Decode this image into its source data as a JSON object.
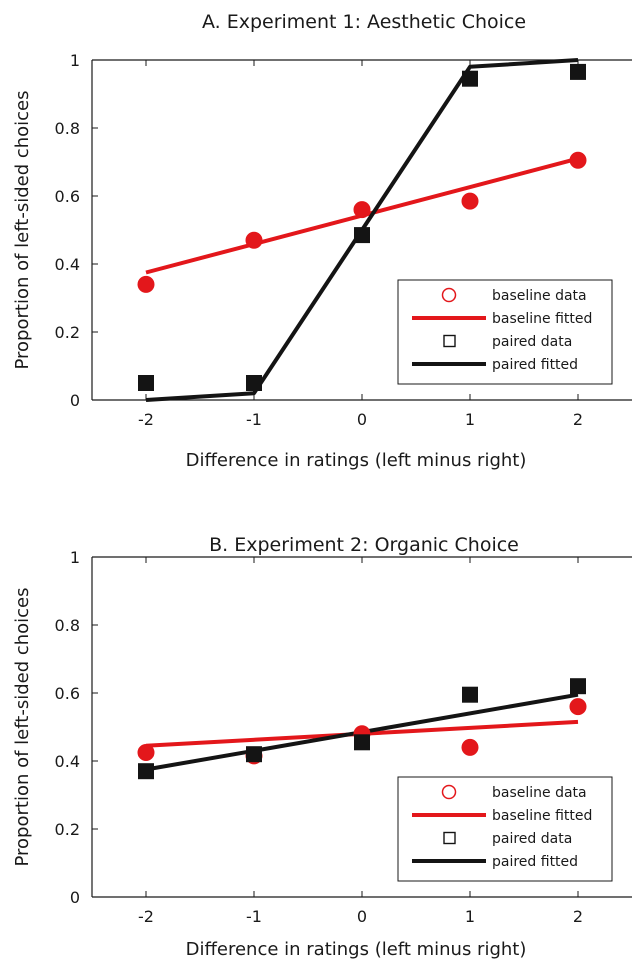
{
  "colors": {
    "baseline": "#e3171b",
    "paired": "#141414",
    "axis": "#1a1a1a"
  },
  "chart_data": [
    {
      "type": "scatter",
      "title": "A. Experiment 1: Aesthetic Choice",
      "xlabel": "Difference in ratings (left minus right)",
      "ylabel": "Proportion of left-sided choices",
      "xlim": [
        -2.5,
        2.5
      ],
      "ylim": [
        0,
        1
      ],
      "xticks": [
        -2,
        -1,
        0,
        1,
        2
      ],
      "xtick_labels": [
        "-2",
        "-1",
        "0",
        "1",
        "2"
      ],
      "yticks": [
        0,
        0.2,
        0.4,
        0.6,
        0.8,
        1
      ],
      "ytick_labels": [
        "0",
        "0.2",
        "0.4",
        "0.6",
        "0.8",
        "1"
      ],
      "legend_position": "bottom-right",
      "series": [
        {
          "name": "baseline data",
          "kind": "markers",
          "marker": "circle",
          "color_key": "baseline",
          "x": [
            -2,
            -1,
            0,
            1,
            2
          ],
          "y": [
            0.34,
            0.47,
            0.56,
            0.585,
            0.705
          ]
        },
        {
          "name": "baseline fitted",
          "kind": "line",
          "color_key": "baseline",
          "x": [
            -2,
            2
          ],
          "y": [
            0.375,
            0.71
          ]
        },
        {
          "name": "paired data",
          "kind": "markers",
          "marker": "square",
          "color_key": "paired",
          "x": [
            -2,
            -1,
            0,
            1,
            2
          ],
          "y": [
            0.05,
            0.05,
            0.485,
            0.945,
            0.965
          ]
        },
        {
          "name": "paired fitted",
          "kind": "line",
          "color_key": "paired",
          "x": [
            -2,
            -1,
            0,
            1,
            2
          ],
          "y": [
            0.0,
            0.02,
            0.5,
            0.98,
            1.0
          ]
        }
      ]
    },
    {
      "type": "scatter",
      "title": "B. Experiment 2: Organic Choice",
      "xlabel": "Difference in ratings (left minus right)",
      "ylabel": "Proportion of left-sided choices",
      "xlim": [
        -2.5,
        2.5
      ],
      "ylim": [
        0,
        1
      ],
      "xticks": [
        -2,
        -1,
        0,
        1,
        2
      ],
      "xtick_labels": [
        "-2",
        "-1",
        "0",
        "1",
        "2"
      ],
      "yticks": [
        0,
        0.2,
        0.4,
        0.6,
        0.8,
        1
      ],
      "ytick_labels": [
        "0",
        "0.2",
        "0.4",
        "0.6",
        "0.8",
        "1"
      ],
      "legend_position": "bottom-right",
      "series": [
        {
          "name": "baseline data",
          "kind": "markers",
          "marker": "circle",
          "color_key": "baseline",
          "x": [
            -2,
            -1,
            0,
            1,
            2
          ],
          "y": [
            0.425,
            0.415,
            0.48,
            0.44,
            0.56
          ]
        },
        {
          "name": "baseline fitted",
          "kind": "line",
          "color_key": "baseline",
          "x": [
            -2,
            2
          ],
          "y": [
            0.445,
            0.515
          ]
        },
        {
          "name": "paired data",
          "kind": "markers",
          "marker": "square",
          "color_key": "paired",
          "x": [
            -2,
            -1,
            0,
            1,
            2
          ],
          "y": [
            0.37,
            0.42,
            0.455,
            0.595,
            0.62
          ]
        },
        {
          "name": "paired fitted",
          "kind": "line",
          "color_key": "paired",
          "x": [
            -2,
            2
          ],
          "y": [
            0.375,
            0.595
          ]
        }
      ]
    }
  ]
}
